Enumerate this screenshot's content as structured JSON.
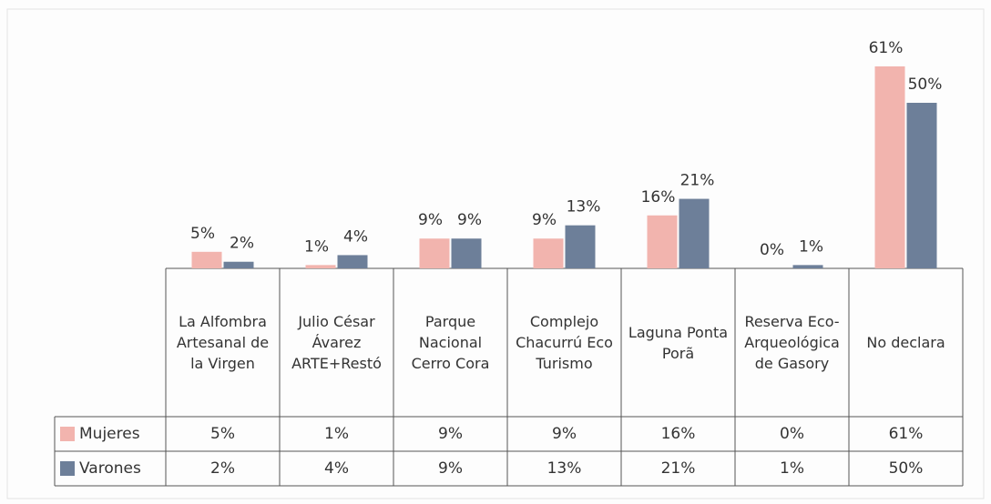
{
  "chart_data": {
    "type": "bar",
    "categories": [
      "La Alfombra Artesanal de la Virgen",
      "Julio César Ávarez ARTE+Restó",
      "Parque Nacional Cerro Cora",
      "Complejo Chacurrú Eco Turismo",
      "Laguna Ponta Porã",
      "Reserva Eco-Arqueológica de Gasory",
      "No declara"
    ],
    "series": [
      {
        "name": "Mujeres",
        "color": "#f2b4ae",
        "values": [
          5,
          1,
          9,
          9,
          16,
          0,
          61
        ],
        "value_labels": [
          "5%",
          "1%",
          "9%",
          "9%",
          "16%",
          "0%",
          "61%"
        ]
      },
      {
        "name": "Varones",
        "color": "#6d7f99",
        "values": [
          2,
          4,
          9,
          13,
          21,
          1,
          50
        ],
        "value_labels": [
          "2%",
          "4%",
          "9%",
          "13%",
          "21%",
          "1%",
          "50%"
        ]
      }
    ]
  }
}
